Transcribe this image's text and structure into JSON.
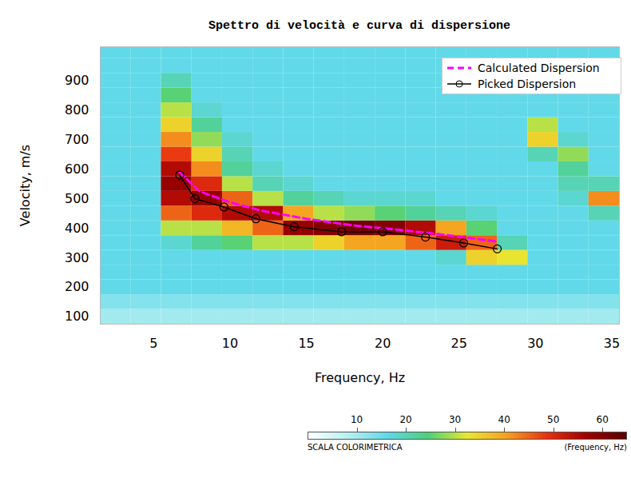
{
  "chart_data": {
    "type": "line",
    "title": "Spettro di velocità e curva di dispersione",
    "x_label": "Frequency, Hz",
    "y_label": "Velocity, m/s",
    "xlim": [
      1.5,
      35.5
    ],
    "xticks": [
      5,
      10,
      15,
      20,
      25,
      30,
      35
    ],
    "ylim": [
      75,
      1015
    ],
    "yticks": [
      100,
      200,
      300,
      400,
      500,
      600,
      700,
      800,
      900
    ],
    "legend": "top-right",
    "series": [
      {
        "name": "Calculated Dispersion",
        "color": "#ff00ff",
        "line_style": "dashed",
        "x": [
          6.7,
          8,
          10,
          12,
          15,
          18,
          21,
          24,
          27.5
        ],
        "values": [
          590,
          525,
          488,
          460,
          432,
          410,
          395,
          378,
          355
        ]
      },
      {
        "name": "Picked Dispersion",
        "color": "#000000",
        "line_style": "solid",
        "marker": "circle",
        "x": [
          6.7,
          7.7,
          9.6,
          11.7,
          14.2,
          17.3,
          20,
          22.8,
          25.3,
          27.5
        ],
        "values": [
          580,
          500,
          472,
          432,
          405,
          388,
          388,
          370,
          350,
          330
        ]
      }
    ],
    "heatmap": {
      "x": [
        2.5,
        4.5,
        6.5,
        8.5,
        10.5,
        12.5,
        14.5,
        16.5,
        18.5,
        20.5,
        22.5,
        24.5,
        26.5,
        28.5,
        30.5,
        32.5,
        34.5
      ],
      "y": [
        100,
        150,
        200,
        250,
        300,
        350,
        400,
        450,
        500,
        550,
        600,
        650,
        700,
        750,
        800,
        850,
        900,
        950,
        1000
      ],
      "z": [
        [
          10,
          10,
          10,
          10,
          10,
          10,
          10,
          10,
          10,
          10,
          10,
          10,
          10,
          10,
          10,
          10,
          10
        ],
        [
          13,
          13,
          13,
          13,
          13,
          13,
          13,
          13,
          13,
          13,
          13,
          13,
          13,
          13,
          13,
          13,
          13
        ],
        [
          16,
          16,
          16,
          16,
          16,
          16,
          16,
          16,
          16,
          16,
          16,
          16,
          16,
          16,
          16,
          16,
          16
        ],
        [
          16,
          16,
          16,
          16,
          16,
          16,
          16,
          16,
          16,
          16,
          16,
          16,
          16,
          16,
          16,
          16,
          16
        ],
        [
          16,
          16,
          16,
          16,
          16,
          16,
          16,
          16,
          16,
          16,
          16,
          18,
          35,
          33,
          16,
          16,
          16
        ],
        [
          16,
          16,
          18,
          22,
          25,
          30,
          30,
          35,
          40,
          40,
          45,
          52,
          45,
          20,
          16,
          16,
          16
        ],
        [
          16,
          16,
          30,
          30,
          38,
          45,
          58,
          60,
          62,
          60,
          55,
          40,
          25,
          16,
          16,
          16,
          16
        ],
        [
          16,
          16,
          45,
          50,
          55,
          55,
          40,
          30,
          28,
          25,
          22,
          20,
          18,
          16,
          16,
          16,
          20
        ],
        [
          16,
          16,
          55,
          58,
          45,
          30,
          22,
          20,
          18,
          18,
          18,
          16,
          16,
          16,
          16,
          18,
          42
        ],
        [
          16,
          16,
          58,
          50,
          30,
          20,
          18,
          16,
          16,
          16,
          16,
          16,
          16,
          16,
          16,
          20,
          20
        ],
        [
          16,
          16,
          55,
          42,
          22,
          18,
          16,
          16,
          16,
          16,
          16,
          16,
          16,
          16,
          16,
          22,
          16
        ],
        [
          16,
          16,
          48,
          35,
          20,
          16,
          16,
          16,
          16,
          16,
          16,
          16,
          16,
          16,
          20,
          28,
          16
        ],
        [
          16,
          16,
          42,
          28,
          18,
          16,
          16,
          16,
          16,
          16,
          16,
          16,
          16,
          16,
          35,
          18,
          16
        ],
        [
          16,
          16,
          35,
          22,
          16,
          16,
          16,
          16,
          16,
          16,
          16,
          16,
          16,
          16,
          30,
          16,
          16
        ],
        [
          16,
          16,
          30,
          18,
          16,
          16,
          16,
          16,
          16,
          16,
          16,
          16,
          16,
          16,
          16,
          16,
          16
        ],
        [
          16,
          16,
          25,
          16,
          16,
          16,
          16,
          16,
          16,
          16,
          16,
          16,
          16,
          16,
          16,
          16,
          16
        ],
        [
          16,
          16,
          20,
          16,
          16,
          16,
          16,
          16,
          16,
          16,
          16,
          16,
          16,
          16,
          16,
          16,
          16
        ],
        [
          16,
          16,
          16,
          16,
          16,
          16,
          16,
          16,
          16,
          16,
          16,
          16,
          16,
          16,
          16,
          16,
          16
        ],
        [
          16,
          16,
          16,
          16,
          16,
          16,
          16,
          16,
          16,
          16,
          16,
          16,
          16,
          16,
          16,
          16,
          16
        ]
      ]
    },
    "colorbar": {
      "range": [
        0,
        65
      ],
      "ticks": [
        10,
        20,
        30,
        40,
        50,
        60
      ],
      "title": "SCALA COLORIMETRICA",
      "label": "(Frequency, Hz)"
    }
  }
}
